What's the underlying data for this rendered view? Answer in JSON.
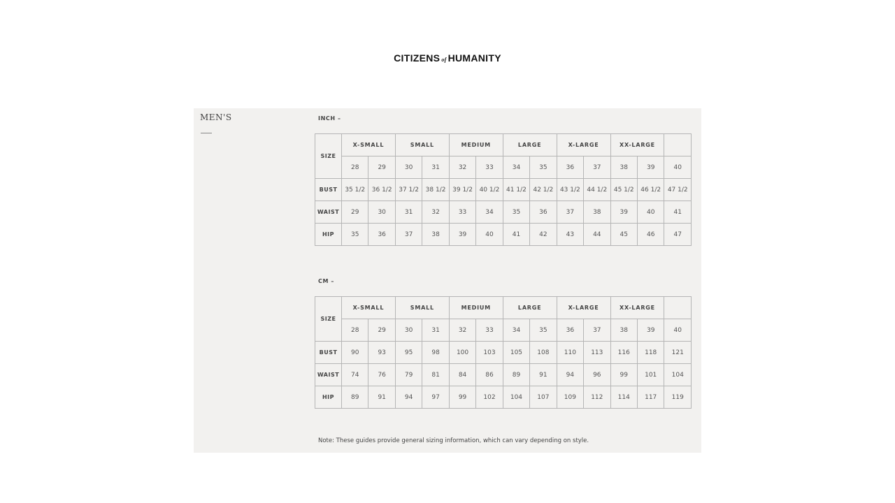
{
  "brand": {
    "part1": "CITIZENS",
    "part2": "of",
    "part3": "HUMANITY"
  },
  "section_title": "MEN'S",
  "size_label": "SIZE",
  "groups": [
    "X-SMALL",
    "SMALL",
    "MEDIUM",
    "LARGE",
    "X-LARGE",
    "XX-LARGE",
    ""
  ],
  "sizes": [
    "28",
    "29",
    "30",
    "31",
    "32",
    "33",
    "34",
    "35",
    "36",
    "37",
    "38",
    "39",
    "40"
  ],
  "tables": [
    {
      "unit": "INCH –",
      "rows": [
        {
          "label": "BUST",
          "values": [
            "35 1/2",
            "36 1/2",
            "37 1/2",
            "38 1/2",
            "39 1/2",
            "40 1/2",
            "41 1/2",
            "42 1/2",
            "43 1/2",
            "44 1/2",
            "45 1/2",
            "46 1/2",
            "47 1/2"
          ]
        },
        {
          "label": "WAIST",
          "values": [
            "29",
            "30",
            "31",
            "32",
            "33",
            "34",
            "35",
            "36",
            "37",
            "38",
            "39",
            "40",
            "41"
          ]
        },
        {
          "label": "HIP",
          "values": [
            "35",
            "36",
            "37",
            "38",
            "39",
            "40",
            "41",
            "42",
            "43",
            "44",
            "45",
            "46",
            "47"
          ]
        }
      ]
    },
    {
      "unit": "CM –",
      "rows": [
        {
          "label": "BUST",
          "values": [
            "90",
            "93",
            "95",
            "98",
            "100",
            "103",
            "105",
            "108",
            "110",
            "113",
            "116",
            "118",
            "121"
          ]
        },
        {
          "label": "WAIST",
          "values": [
            "74",
            "76",
            "79",
            "81",
            "84",
            "86",
            "89",
            "91",
            "94",
            "96",
            "99",
            "101",
            "104"
          ]
        },
        {
          "label": "HIP",
          "values": [
            "89",
            "91",
            "94",
            "97",
            "99",
            "102",
            "104",
            "107",
            "109",
            "112",
            "114",
            "117",
            "119"
          ]
        }
      ]
    }
  ],
  "note": "Note: These guides provide general sizing information, which can vary depending on style."
}
